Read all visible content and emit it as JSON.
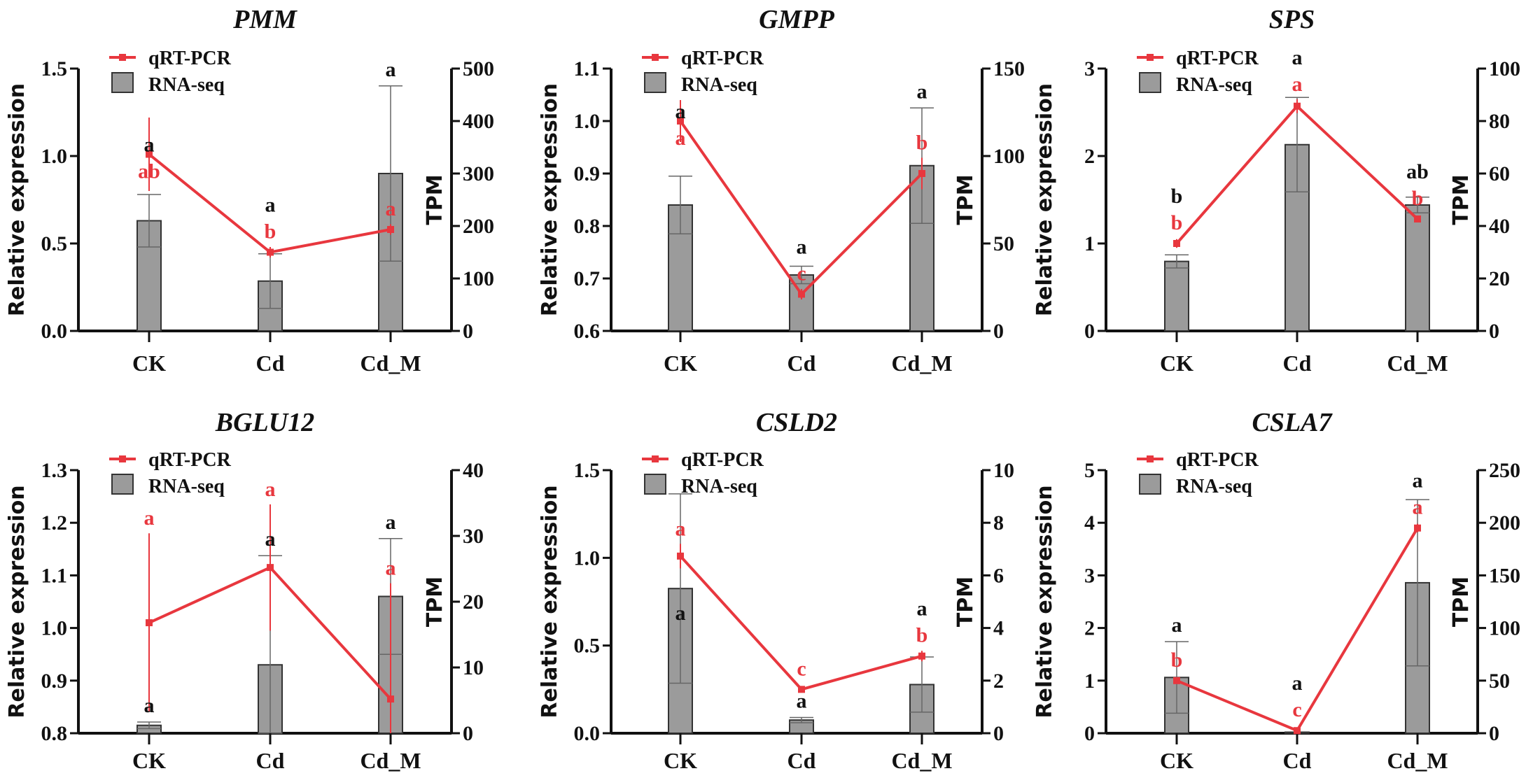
{
  "chart_data": [
    {
      "type": "bar+line",
      "title": "PMM",
      "categories": [
        "CK",
        "Cd",
        "Cd_M"
      ],
      "ylabel": "Relative expression",
      "y2label": "TPM",
      "ylim": [
        0,
        1.5
      ],
      "yticks": [
        "0.0",
        "0.5",
        "1.0",
        "1.5"
      ],
      "y2lim": [
        0,
        500
      ],
      "y2ticks": [
        "0",
        "100",
        "200",
        "300",
        "400",
        "500"
      ],
      "legend": [
        "qRT-PCR",
        "RNA-seq"
      ],
      "line": {
        "name": "qRT-PCR",
        "values": [
          1.01,
          0.45,
          0.58
        ],
        "sd": [
          0.21,
          0.03,
          0.03
        ],
        "letters": [
          "ab",
          "b",
          "a"
        ]
      },
      "bars": {
        "name": "RNA-seq",
        "values": [
          210,
          95,
          300
        ],
        "sd": [
          50,
          52,
          167
        ],
        "letters": [
          "a",
          "a",
          "a"
        ]
      }
    },
    {
      "type": "bar+line",
      "title": "GMPP",
      "categories": [
        "CK",
        "Cd",
        "Cd_M"
      ],
      "ylabel": "Relative expression",
      "y2label": "TPM",
      "ylim": [
        0.6,
        1.1
      ],
      "yticks": [
        "0.6",
        "0.7",
        "0.8",
        "0.9",
        "1.0",
        "1.1"
      ],
      "y2lim": [
        0,
        150
      ],
      "y2ticks": [
        "0",
        "50",
        "100",
        "150"
      ],
      "legend": [
        "qRT-PCR",
        "RNA-seq"
      ],
      "line": {
        "name": "qRT-PCR",
        "values": [
          1.0,
          0.67,
          0.9
        ],
        "sd": [
          0.04,
          0.01,
          0.03
        ],
        "letters": [
          "a",
          "c",
          "b"
        ]
      },
      "bars": {
        "name": "RNA-seq",
        "values": [
          72,
          32,
          94.5
        ],
        "sd": [
          16.5,
          5,
          33
        ],
        "letters": [
          "a",
          "a",
          "a"
        ]
      }
    },
    {
      "type": "bar+line",
      "title": "SPS",
      "categories": [
        "CK",
        "Cd",
        "Cd_M"
      ],
      "ylabel": "Relative expression",
      "y2label": "TPM",
      "ylim": [
        0,
        3
      ],
      "yticks": [
        "0",
        "1",
        "2",
        "3"
      ],
      "y2lim": [
        0,
        100
      ],
      "y2ticks": [
        "0",
        "20",
        "40",
        "60",
        "80",
        "100"
      ],
      "legend": [
        "qRT-PCR",
        "RNA-seq"
      ],
      "line": {
        "name": "qRT-PCR",
        "values": [
          1.0,
          2.57,
          1.28
        ],
        "sd": [
          0.05,
          0.08,
          0.03
        ],
        "letters": [
          "b",
          "a",
          "b"
        ]
      },
      "bars": {
        "name": "RNA-seq",
        "values": [
          26.5,
          71,
          48
        ],
        "sd": [
          2.5,
          18,
          3
        ],
        "letters": [
          "b",
          "a",
          "ab"
        ]
      }
    },
    {
      "type": "bar+line",
      "title": "BGLU12",
      "categories": [
        "CK",
        "Cd",
        "Cd_M"
      ],
      "ylabel": "Relative expression",
      "y2label": "TPM",
      "ylim": [
        0.8,
        1.3
      ],
      "yticks": [
        "0.8",
        "0.9",
        "1.0",
        "1.1",
        "1.2",
        "1.3"
      ],
      "y2lim": [
        0,
        40
      ],
      "y2ticks": [
        "0",
        "10",
        "20",
        "30",
        "40"
      ],
      "legend": [
        "qRT-PCR",
        "RNA-seq"
      ],
      "line": {
        "name": "qRT-PCR",
        "values": [
          1.01,
          1.115,
          0.865
        ],
        "sd": [
          0.17,
          0.12,
          0.22
        ],
        "letters": [
          "a",
          "a",
          "a"
        ]
      },
      "bars": {
        "name": "RNA-seq",
        "values": [
          1.2,
          10.4,
          20.8
        ],
        "sd": [
          0.5,
          16.6,
          8.8
        ],
        "letters": [
          "a",
          "a",
          "a"
        ]
      }
    },
    {
      "type": "bar+line",
      "title": "CSLD2",
      "categories": [
        "CK",
        "Cd",
        "Cd_M"
      ],
      "ylabel": "Relative expression",
      "y2label": "TPM",
      "ylim": [
        0,
        1.5
      ],
      "yticks": [
        "0.0",
        "0.5",
        "1.0",
        "1.5"
      ],
      "y2lim": [
        0,
        10
      ],
      "y2ticks": [
        "0",
        "2",
        "4",
        "6",
        "8",
        "10"
      ],
      "legend": [
        "qRT-PCR",
        "RNA-seq"
      ],
      "line": {
        "name": "qRT-PCR",
        "values": [
          1.01,
          0.25,
          0.44
        ],
        "sd": [
          0.07,
          0.01,
          0.03
        ],
        "letters": [
          "a",
          "c",
          "b"
        ]
      },
      "bars": {
        "name": "RNA-seq",
        "values": [
          5.5,
          0.5,
          1.85
        ],
        "sd": [
          3.6,
          0.1,
          1.05
        ],
        "letters": [
          "a",
          "a",
          "a"
        ]
      }
    },
    {
      "type": "bar+line",
      "title": "CSLA7",
      "categories": [
        "CK",
        "Cd",
        "Cd_M"
      ],
      "ylabel": "Relative expression",
      "y2label": "TPM",
      "ylim": [
        0,
        5
      ],
      "yticks": [
        "0",
        "1",
        "2",
        "3",
        "4",
        "5"
      ],
      "y2lim": [
        0,
        250
      ],
      "y2ticks": [
        "0",
        "50",
        "100",
        "150",
        "200",
        "250"
      ],
      "legend": [
        "qRT-PCR",
        "RNA-seq"
      ],
      "line": {
        "name": "qRT-PCR",
        "values": [
          1.0,
          0.05,
          3.9
        ],
        "sd": [
          0.05,
          0.02,
          0.08
        ],
        "letters": [
          "b",
          "c",
          "a"
        ]
      },
      "bars": {
        "name": "RNA-seq",
        "values": [
          53,
          1,
          143
        ],
        "sd": [
          34,
          0,
          79
        ],
        "letters": [
          "a",
          "a",
          "a"
        ]
      }
    }
  ],
  "colors": {
    "line": "#e8373e",
    "bar": "#9b9b9b",
    "letter_red": "#e8373e",
    "letter_black": "#111111"
  }
}
